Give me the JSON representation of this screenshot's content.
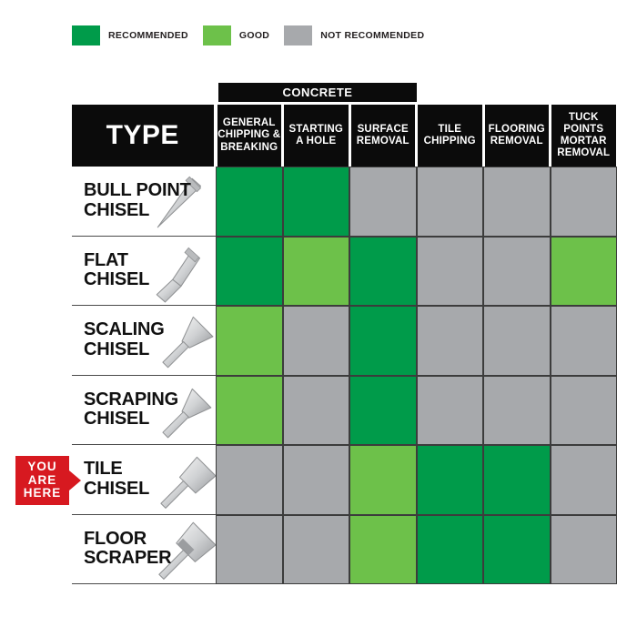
{
  "colors": {
    "recommended": "#009b4a",
    "good": "#6dc14a",
    "not_recommended": "#a7a9ac",
    "header_black": "#0b0b0b",
    "badge_red": "#d71920"
  },
  "legend": {
    "items": [
      {
        "key": "recommended",
        "label": "RECOMMENDED",
        "swatch_icon": "recommended-swatch"
      },
      {
        "key": "good",
        "label": "GOOD",
        "swatch_icon": "good-swatch"
      },
      {
        "key": "not_recommended",
        "label": "NOT RECOMMENDED",
        "swatch_icon": "not-recommended-swatch"
      }
    ]
  },
  "badge": {
    "text": "YOU\nARE\nHERE"
  },
  "table": {
    "group_header": "CONCRETE",
    "group_header_span_columns": 3,
    "type_header": "TYPE",
    "columns": [
      "GENERAL\nCHIPPING &\nBREAKING",
      "STARTING\nA HOLE",
      "SURFACE\nREMOVAL",
      "TILE\nCHIPPING",
      "FLOORING\nREMOVAL",
      "TUCK\nPOINTS\nMORTAR\nREMOVAL"
    ],
    "rows": [
      {
        "label": "BULL POINT\nCHISEL",
        "icon": "bull-point-chisel-icon",
        "ratings": [
          "recommended",
          "recommended",
          "not_recommended",
          "not_recommended",
          "not_recommended",
          "not_recommended"
        ]
      },
      {
        "label": "FLAT\nCHISEL",
        "icon": "flat-chisel-icon",
        "ratings": [
          "recommended",
          "good",
          "recommended",
          "not_recommended",
          "not_recommended",
          "good"
        ]
      },
      {
        "label": "SCALING\nCHISEL",
        "icon": "scaling-chisel-icon",
        "ratings": [
          "good",
          "not_recommended",
          "recommended",
          "not_recommended",
          "not_recommended",
          "not_recommended"
        ]
      },
      {
        "label": "SCRAPING\nCHISEL",
        "icon": "scraping-chisel-icon",
        "ratings": [
          "good",
          "not_recommended",
          "recommended",
          "not_recommended",
          "not_recommended",
          "not_recommended"
        ]
      },
      {
        "label": "TILE\nCHISEL",
        "icon": "tile-chisel-icon",
        "badge": "YOU ARE HERE",
        "ratings": [
          "not_recommended",
          "not_recommended",
          "good",
          "recommended",
          "recommended",
          "not_recommended"
        ]
      },
      {
        "label": "FLOOR\nSCRAPER",
        "icon": "floor-scraper-icon",
        "ratings": [
          "not_recommended",
          "not_recommended",
          "good",
          "recommended",
          "recommended",
          "not_recommended"
        ]
      }
    ]
  },
  "chart_data": {
    "type": "heatmap",
    "title": "Chisel type application chart",
    "x_categories": [
      "GENERAL CHIPPING & BREAKING (CONCRETE)",
      "STARTING A HOLE (CONCRETE)",
      "SURFACE REMOVAL (CONCRETE)",
      "TILE CHIPPING",
      "FLOORING REMOVAL",
      "TUCK POINTS MORTAR REMOVAL"
    ],
    "y_categories": [
      "BULL POINT CHISEL",
      "FLAT CHISEL",
      "SCALING CHISEL",
      "SCRAPING CHISEL",
      "TILE CHISEL",
      "FLOOR SCRAPER"
    ],
    "legend": [
      "RECOMMENDED",
      "GOOD",
      "NOT RECOMMENDED"
    ],
    "values": [
      [
        "recommended",
        "recommended",
        "not_recommended",
        "not_recommended",
        "not_recommended",
        "not_recommended"
      ],
      [
        "recommended",
        "good",
        "recommended",
        "not_recommended",
        "not_recommended",
        "good"
      ],
      [
        "good",
        "not_recommended",
        "recommended",
        "not_recommended",
        "not_recommended",
        "not_recommended"
      ],
      [
        "good",
        "not_recommended",
        "recommended",
        "not_recommended",
        "not_recommended",
        "not_recommended"
      ],
      [
        "not_recommended",
        "not_recommended",
        "good",
        "recommended",
        "recommended",
        "not_recommended"
      ],
      [
        "not_recommended",
        "not_recommended",
        "good",
        "recommended",
        "recommended",
        "not_recommended"
      ]
    ],
    "annotation": "YOU ARE HERE -> TILE CHISEL",
    "legend_position": "top-left"
  }
}
